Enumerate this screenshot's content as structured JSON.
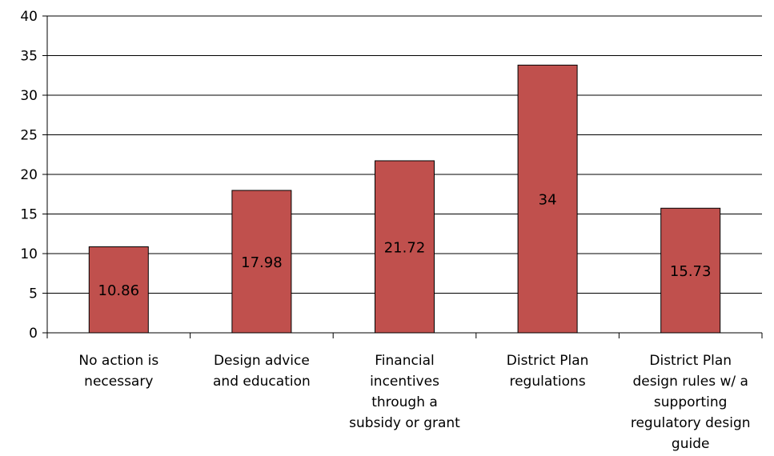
{
  "chart_data": {
    "type": "bar",
    "categories": [
      [
        "No action is",
        "necessary"
      ],
      [
        "Design advice",
        "and education"
      ],
      [
        "Financial",
        "incentives",
        "through a",
        "subsidy or grant"
      ],
      [
        "District Plan",
        "regulations"
      ],
      [
        "District Plan",
        "design rules w/ a",
        "supporting",
        "regulatory design",
        "guide"
      ]
    ],
    "values": [
      10.86,
      17.98,
      21.72,
      33.8,
      15.73
    ],
    "data_labels": [
      "10.86",
      "17.98",
      "21.72",
      "34",
      "15.73"
    ],
    "ylim": [
      0,
      40
    ],
    "yticks": [
      0,
      5,
      10,
      15,
      20,
      25,
      30,
      35,
      40
    ],
    "grid": true,
    "bar_color": "#c0504d",
    "bar_edge_color": "#000000"
  }
}
